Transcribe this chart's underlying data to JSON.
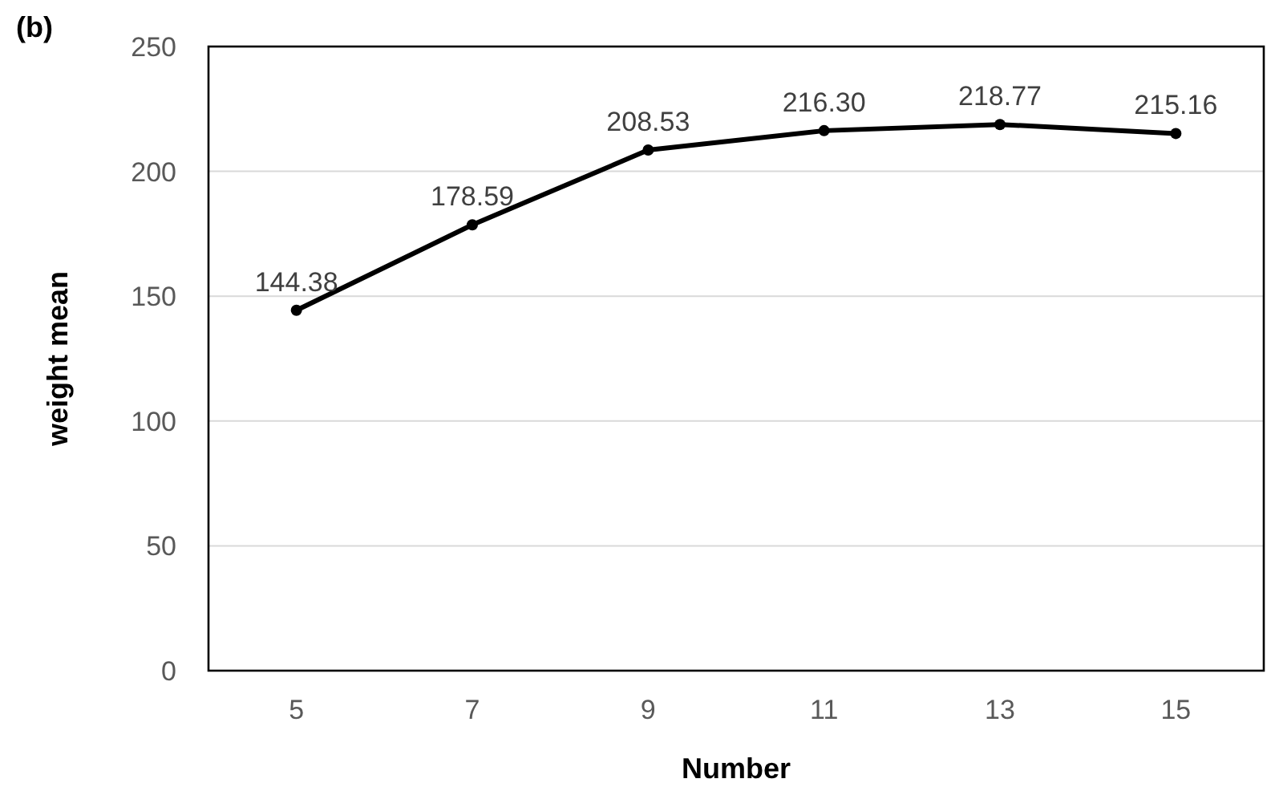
{
  "chart_data": {
    "type": "line",
    "title": "(b)",
    "xlabel": "Number",
    "ylabel": "weight mean",
    "categories": [
      "5",
      "7",
      "9",
      "11",
      "13",
      "15"
    ],
    "series": [
      {
        "color": "#000000",
        "values": [
          144.38,
          178.59,
          208.53,
          216.3,
          218.77,
          215.16
        ]
      }
    ],
    "value_labels": [
      "144.38",
      "178.59",
      "208.53",
      "216.30",
      "218.77",
      "215.16"
    ],
    "ylim": [
      0,
      250
    ],
    "yticks": [
      0,
      50,
      100,
      150,
      200,
      250
    ],
    "grid": "y",
    "marker": "circle",
    "line_style": "solid"
  }
}
